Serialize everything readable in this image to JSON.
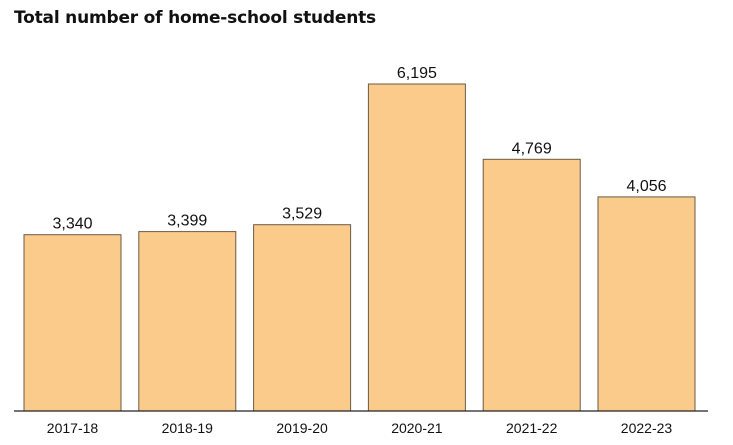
{
  "chart_data": {
    "type": "bar",
    "title": "Total number of home-school students",
    "categories": [
      "2017-18",
      "2018-19",
      "2019-20",
      "2020-21",
      "2021-22",
      "2022-23"
    ],
    "values": [
      3340,
      3399,
      3529,
      6195,
      4769,
      4056
    ],
    "value_labels": [
      "3,340",
      "3,399",
      "3,529",
      "6,195",
      "4,769",
      "4,056"
    ],
    "xlabel": "",
    "ylabel": "",
    "ylim": [
      0,
      6195
    ],
    "grid": false,
    "colors": {
      "bar_fill": "#fbcb8b",
      "bar_stroke": "#6b5a45",
      "axis": "#222222"
    }
  }
}
